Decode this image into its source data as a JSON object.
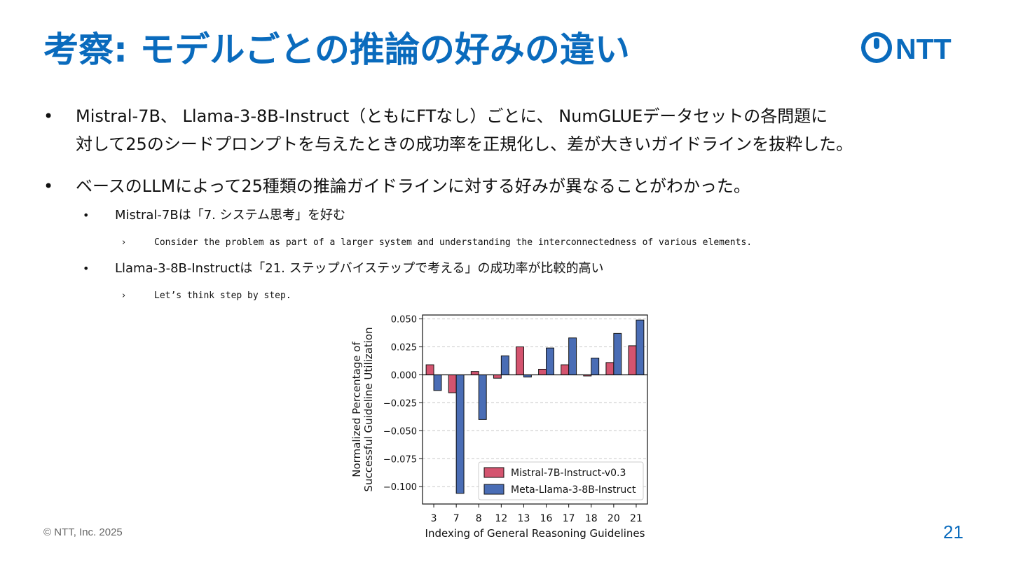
{
  "slide": {
    "title": "考察: モデルごとの推論の好みの違い",
    "logo_text": "NTT",
    "page_number": "21",
    "footer": "© NTT, Inc.  2025",
    "accent_color": "#0a6bbd"
  },
  "bullets": {
    "b1": {
      "line1": "Mistral-7B、 Llama-3-8B-Instruct（ともにFTなし）ごとに、 NumGLUEデータセットの各問題に",
      "line2": "対して25のシードプロンプトを与えたときの成功率を正規化し、差が大きいガイドラインを抜粋した。"
    },
    "b2": "ベースのLLMによって25種類の推論ガイドラインに対する好みが異なることがわかった。",
    "sub1": "Mistral-7Bは「7. システム思考」を好む",
    "sub1_quote": "Consider the problem as part of a larger system and understanding the interconnectedness of various elements.",
    "sub2": "Llama-3-8B-Instructは「21. ステップバイステップで考える」の成功率が比較的高い",
    "sub2_quote": "Let’s think step by step.",
    "dot": "•",
    "arrow": "›"
  },
  "chart_data": {
    "type": "bar",
    "categories": [
      "3",
      "7",
      "8",
      "12",
      "13",
      "16",
      "17",
      "18",
      "20",
      "21"
    ],
    "series": [
      {
        "name": "Mistral-7B-Instruct-v0.3",
        "color": "#d4546f",
        "values": [
          0.009,
          -0.016,
          0.003,
          -0.003,
          0.025,
          0.005,
          0.009,
          -0.001,
          0.011,
          0.026
        ]
      },
      {
        "name": "Meta-Llama-3-8B-Instruct",
        "color": "#4a6db5",
        "values": [
          -0.014,
          -0.106,
          -0.04,
          0.017,
          -0.002,
          0.024,
          0.033,
          0.015,
          0.037,
          0.049
        ]
      }
    ],
    "yticks": [
      "0.050",
      "0.025",
      "0.000",
      "−0.025",
      "−0.050",
      "−0.075",
      "−0.100"
    ],
    "ytick_values": [
      0.05,
      0.025,
      0,
      -0.025,
      -0.05,
      -0.075,
      -0.1
    ],
    "ylim": [
      -0.1155,
      0.0535
    ],
    "ylabel_line1": "Normalized Percentage of",
    "ylabel_line2": "Successful Guideline Utilization",
    "xlabel": "Indexing of General Reasoning Guidelines",
    "grid": "horizontal dashed",
    "legend_position": "lower-right"
  }
}
